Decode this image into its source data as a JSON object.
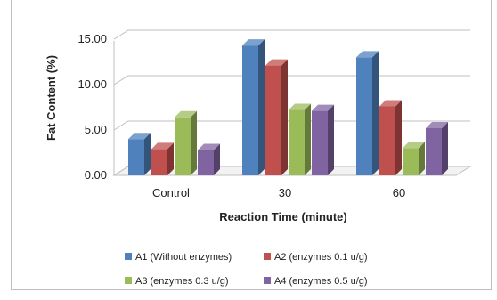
{
  "chart_data": {
    "type": "bar",
    "title": "",
    "xlabel": "Reaction Time (minute)",
    "ylabel": "Fat Content (%)",
    "ylim": [
      0,
      15
    ],
    "yticks": [
      "0.00",
      "5.00",
      "10.00",
      "15.00"
    ],
    "categories": [
      "Control",
      "30",
      "60"
    ],
    "grid": true,
    "legend_position": "bottom",
    "series": [
      {
        "name": "A1 (Without enzymes)",
        "values": [
          4.0,
          14.3,
          13.0
        ],
        "color": "#4F81BD"
      },
      {
        "name": "A2 (enzymes 0.1 u/g)",
        "values": [
          2.9,
          12.1,
          7.6
        ],
        "color": "#C0504D"
      },
      {
        "name": "A3 (enzymes 0.3 u/g)",
        "values": [
          6.4,
          7.2,
          3.0
        ],
        "color": "#9BBB59"
      },
      {
        "name": "A4 (enzymes 0.5 u/g)",
        "values": [
          2.8,
          7.1,
          5.2
        ],
        "color": "#8064A2"
      }
    ]
  }
}
